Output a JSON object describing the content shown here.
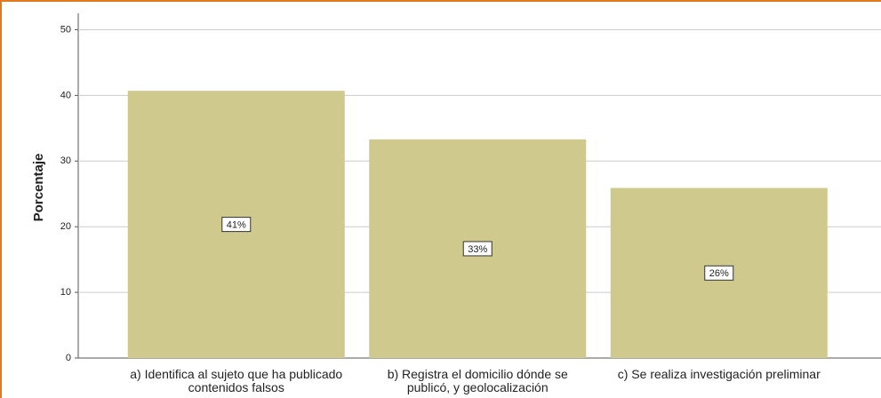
{
  "chart_data": {
    "type": "bar",
    "y_label": "Porcentaje",
    "categories": [
      "a) Identifica al sujeto que ha publicado contenidos falsos",
      "b) Registra el domicilio dónde se publicó, y geolocalización",
      "c) Se realiza investigación preliminar"
    ],
    "values": [
      40.7,
      33.3,
      25.9
    ],
    "value_labels": [
      "41%",
      "33%",
      "26%"
    ],
    "color": "#cfc98e",
    "ylim": [
      0,
      52.5
    ],
    "yticks": [
      0,
      10,
      20,
      30,
      40,
      50
    ],
    "grid": true
  }
}
